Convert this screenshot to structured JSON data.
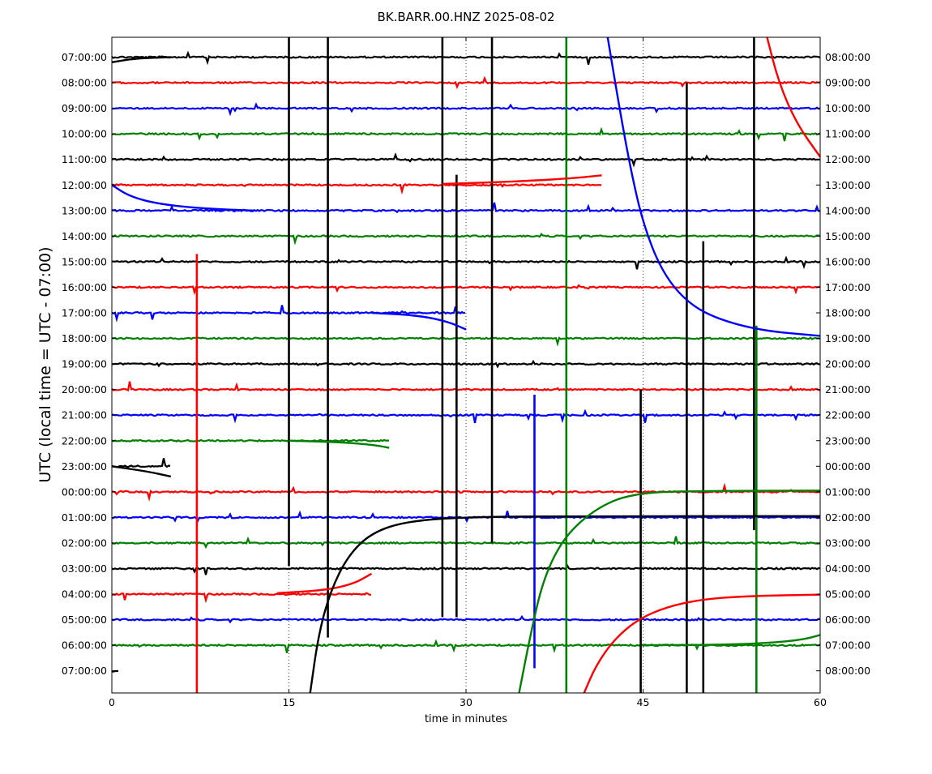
{
  "chart_data": {
    "type": "line",
    "title": "BK.BARR.00.HNZ 2025-08-02",
    "xlabel": "time in minutes",
    "ylabel": "UTC (local time = UTC - 07:00)",
    "xlim": [
      0,
      60
    ],
    "x_ticks": [
      "0",
      "15",
      "30",
      "45",
      "60"
    ],
    "grid": "vertical dotted at 15, 30, 45",
    "left_tick_labels": [
      "07:00:00",
      "08:00:00",
      "09:00:00",
      "10:00:00",
      "11:00:00",
      "12:00:00",
      "13:00:00",
      "14:00:00",
      "15:00:00",
      "16:00:00",
      "17:00:00",
      "18:00:00",
      "19:00:00",
      "20:00:00",
      "21:00:00",
      "22:00:00",
      "23:00:00",
      "00:00:00",
      "01:00:00",
      "02:00:00",
      "03:00:00",
      "04:00:00",
      "05:00:00",
      "06:00:00",
      "07:00:00"
    ],
    "right_tick_labels": [
      "08:00:00",
      "09:00:00",
      "10:00:00",
      "11:00:00",
      "12:00:00",
      "13:00:00",
      "14:00:00",
      "15:00:00",
      "16:00:00",
      "17:00:00",
      "18:00:00",
      "19:00:00",
      "20:00:00",
      "21:00:00",
      "22:00:00",
      "23:00:00",
      "00:00:00",
      "01:00:00",
      "02:00:00",
      "03:00:00",
      "04:00:00",
      "05:00:00",
      "06:00:00",
      "07:00:00",
      "08:00:00"
    ],
    "trace_colors": [
      "#000000",
      "#ff0000",
      "#0000ff",
      "#008000"
    ],
    "traces": [
      {
        "row": 0,
        "color": "#000000",
        "x_start": 0,
        "x_end": 60
      },
      {
        "row": 1,
        "color": "#ff0000",
        "x_start": 0,
        "x_end": 60
      },
      {
        "row": 2,
        "color": "#0000ff",
        "x_start": 0,
        "x_end": 60
      },
      {
        "row": 3,
        "color": "#008000",
        "x_start": 0,
        "x_end": 60
      },
      {
        "row": 4,
        "color": "#000000",
        "x_start": 0,
        "x_end": 60
      },
      {
        "row": 5,
        "color": "#ff0000",
        "x_start": 0,
        "x_end": 41.5
      },
      {
        "row": 6,
        "color": "#0000ff",
        "x_start": 0,
        "x_end": 60
      },
      {
        "row": 7,
        "color": "#008000",
        "x_start": 0,
        "x_end": 60
      },
      {
        "row": 8,
        "color": "#000000",
        "x_start": 0,
        "x_end": 60
      },
      {
        "row": 9,
        "color": "#ff0000",
        "x_start": 0,
        "x_end": 60
      },
      {
        "row": 10,
        "color": "#0000ff",
        "x_start": 0,
        "x_end": 30
      },
      {
        "row": 11,
        "color": "#008000",
        "x_start": 0,
        "x_end": 60
      },
      {
        "row": 12,
        "color": "#000000",
        "x_start": 0,
        "x_end": 60
      },
      {
        "row": 13,
        "color": "#ff0000",
        "x_start": 0,
        "x_end": 60
      },
      {
        "row": 14,
        "color": "#0000ff",
        "x_start": 0,
        "x_end": 60
      },
      {
        "row": 15,
        "color": "#008000",
        "x_start": 0,
        "x_end": 23.5
      },
      {
        "row": 16,
        "color": "#000000",
        "x_start": 0,
        "x_end": 5
      },
      {
        "row": 17,
        "color": "#ff0000",
        "x_start": 0,
        "x_end": 60
      },
      {
        "row": 18,
        "color": "#0000ff",
        "x_start": 0,
        "x_end": 60
      },
      {
        "row": 19,
        "color": "#008000",
        "x_start": 0,
        "x_end": 60
      },
      {
        "row": 20,
        "color": "#000000",
        "x_start": 0,
        "x_end": 60
      },
      {
        "row": 21,
        "color": "#ff0000",
        "x_start": 0,
        "x_end": 22
      },
      {
        "row": 22,
        "color": "#0000ff",
        "x_start": 0,
        "x_end": 60
      },
      {
        "row": 23,
        "color": "#008000",
        "x_start": 0,
        "x_end": 60
      },
      {
        "row": 24,
        "color": "#000000",
        "x_start": 0,
        "x_end": 0.6
      }
    ],
    "events": [
      {
        "x": 7.2,
        "row_from": 7.7,
        "row_to": 24.9,
        "color": "#ff0000"
      },
      {
        "x": 15.0,
        "row_from": -0.8,
        "row_to": 19.9,
        "color": "#000000"
      },
      {
        "x": 18.3,
        "row_from": -0.8,
        "row_to": 22.7,
        "color": "#000000"
      },
      {
        "x": 28.0,
        "row_from": -0.8,
        "row_to": 21.9,
        "color": "#000000"
      },
      {
        "x": 29.2,
        "row_from": 4.6,
        "row_to": 21.9,
        "color": "#000000"
      },
      {
        "x": 32.2,
        "row_from": -0.8,
        "row_to": 19.0,
        "color": "#000000"
      },
      {
        "x": 35.8,
        "row_from": 13.2,
        "row_to": 23.9,
        "color": "#0000ff"
      },
      {
        "x": 38.5,
        "row_from": -0.8,
        "row_to": 24.9,
        "color": "#008000"
      },
      {
        "x": 44.8,
        "row_from": 13.0,
        "row_to": 24.9,
        "color": "#000000"
      },
      {
        "x": 48.7,
        "row_from": 1.0,
        "row_to": 24.9,
        "color": "#000000"
      },
      {
        "x": 50.1,
        "row_from": 7.2,
        "row_to": 24.9,
        "color": "#000000"
      },
      {
        "x": 54.4,
        "row_from": -0.8,
        "row_to": 18.5,
        "color": "#000000"
      },
      {
        "x": 54.6,
        "row_from": 10.5,
        "row_to": 24.9,
        "color": "#008000"
      }
    ],
    "drift_curves": [
      {
        "color": "#0000ff",
        "points": [
          [
            42.0,
            -0.8
          ],
          [
            43.0,
            2.0
          ],
          [
            44.0,
            4.5
          ],
          [
            45.0,
            6.5
          ],
          [
            46.5,
            8.3
          ],
          [
            48.5,
            9.5
          ],
          [
            51.0,
            10.2
          ],
          [
            55.0,
            10.7
          ],
          [
            60.0,
            10.9
          ]
        ]
      },
      {
        "color": "#ff0000",
        "points": [
          [
            55.5,
            -0.8
          ],
          [
            56.5,
            1.0
          ],
          [
            58.0,
            2.6
          ],
          [
            60.0,
            3.9
          ]
        ]
      },
      {
        "color": "#0000ff",
        "points": [
          [
            0.0,
            5.0
          ],
          [
            1.5,
            5.45
          ],
          [
            4.0,
            5.75
          ],
          [
            8.0,
            5.93
          ],
          [
            12.0,
            6.0
          ]
        ]
      },
      {
        "color": "#000000",
        "points": [
          [
            0.0,
            0.2
          ],
          [
            2.0,
            0.05
          ],
          [
            5.0,
            0.0
          ]
        ]
      },
      {
        "color": "#ff0000",
        "points": [
          [
            28.0,
            4.96
          ],
          [
            35.0,
            4.85
          ],
          [
            39.5,
            4.72
          ],
          [
            41.5,
            4.62
          ]
        ]
      },
      {
        "color": "#0000ff",
        "points": [
          [
            22.0,
            10.0
          ],
          [
            26.0,
            10.1
          ],
          [
            28.5,
            10.35
          ],
          [
            30.0,
            10.65
          ]
        ]
      },
      {
        "color": "#008000",
        "points": [
          [
            15.0,
            15.0
          ],
          [
            19.0,
            15.05
          ],
          [
            22.0,
            15.15
          ],
          [
            23.5,
            15.28
          ]
        ]
      },
      {
        "color": "#000000",
        "points": [
          [
            0.0,
            16.0
          ],
          [
            3.0,
            16.2
          ],
          [
            5.0,
            16.4
          ]
        ]
      },
      {
        "color": "#ff0000",
        "points": [
          [
            14.0,
            20.96
          ],
          [
            18.0,
            20.85
          ],
          [
            20.5,
            20.6
          ],
          [
            22.0,
            20.2
          ]
        ]
      },
      {
        "color": "#000000",
        "points": [
          [
            16.8,
            24.9
          ],
          [
            17.5,
            22.6
          ],
          [
            18.5,
            20.9
          ],
          [
            20.0,
            19.5
          ],
          [
            22.0,
            18.6
          ],
          [
            25.0,
            18.15
          ],
          [
            30.0,
            17.98
          ],
          [
            40.0,
            17.95
          ],
          [
            60.0,
            17.95
          ]
        ]
      },
      {
        "color": "#008000",
        "points": [
          [
            34.5,
            24.9
          ],
          [
            35.5,
            22.5
          ],
          [
            36.5,
            20.5
          ],
          [
            38.0,
            19.0
          ],
          [
            40.0,
            18.0
          ],
          [
            42.5,
            17.3
          ],
          [
            45.0,
            17.05
          ],
          [
            48.0,
            16.97
          ],
          [
            60.0,
            16.95
          ]
        ]
      },
      {
        "color": "#ff0000",
        "points": [
          [
            40.0,
            24.9
          ],
          [
            41.0,
            23.8
          ],
          [
            42.5,
            22.8
          ],
          [
            44.5,
            22.0
          ],
          [
            47.0,
            21.5
          ],
          [
            50.0,
            21.2
          ],
          [
            54.0,
            21.07
          ],
          [
            60.0,
            21.02
          ]
        ]
      },
      {
        "color": "#008000",
        "points": [
          [
            45.0,
            23.0
          ],
          [
            52.0,
            22.98
          ],
          [
            56.0,
            22.9
          ],
          [
            58.5,
            22.78
          ],
          [
            60.0,
            22.6
          ]
        ]
      }
    ]
  }
}
